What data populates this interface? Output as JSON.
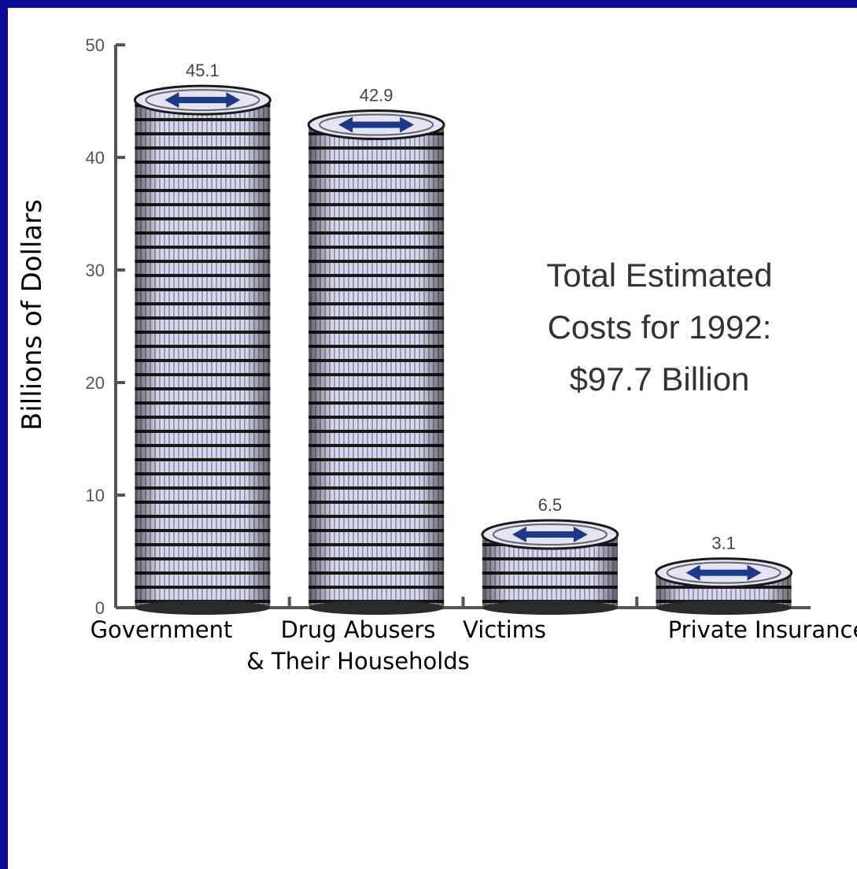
{
  "chart_data": {
    "type": "bar",
    "categories": [
      [
        "Government"
      ],
      [
        "Drug Abusers",
        "& Their Households"
      ],
      [
        "Victims"
      ],
      [
        "Private Insurance"
      ]
    ],
    "values": [
      45.1,
      42.9,
      6.5,
      3.1
    ],
    "value_labels": [
      "45.1",
      "42.9",
      "6.5",
      "3.1"
    ],
    "title": "",
    "xlabel": "",
    "ylabel": "Billions of Dollars",
    "ylim": [
      0,
      50
    ],
    "yticks": [
      0,
      10,
      20,
      30,
      40,
      50
    ],
    "grid": false,
    "annotation": [
      "Total Estimated",
      "Costs for 1992:",
      "$97.7 Billion"
    ],
    "bar_style": "stacked coins",
    "colors": {
      "frame": "#0b0b96",
      "coin_face": "#d8d8ec",
      "coin_edge": "#1a1a1a",
      "emblem": "#1c3a8a"
    }
  }
}
